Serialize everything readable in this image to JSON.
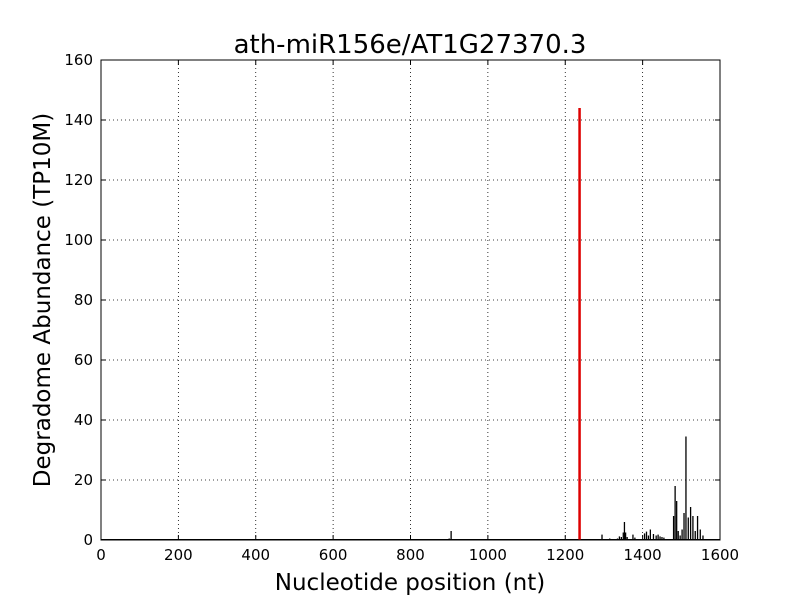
{
  "chart_data": {
    "type": "line",
    "title": "ath-miR156e/AT1G27370.3",
    "xlabel": "Nucleotide position (nt)",
    "ylabel": "Degradome Abundance (TP10M)",
    "xlim": [
      0,
      1600
    ],
    "ylim": [
      0,
      160
    ],
    "xticks": [
      0,
      200,
      400,
      600,
      800,
      1000,
      1200,
      1400,
      1600
    ],
    "yticks": [
      0,
      20,
      40,
      60,
      80,
      100,
      120,
      140,
      160
    ],
    "grid": true,
    "grid_style": "dotted",
    "colors": {
      "series": "#000000",
      "highlight": "#dd0000"
    },
    "series": [
      {
        "x": [
          150,
          240,
          500,
          610,
          700,
          780,
          900,
          905,
          1010,
          1100,
          1160,
          1295,
          1315,
          1335,
          1340,
          1345,
          1350,
          1353,
          1356,
          1360,
          1375,
          1380,
          1405,
          1410,
          1415,
          1420,
          1428,
          1435,
          1440,
          1445,
          1450,
          1455,
          1480,
          1484,
          1488,
          1492,
          1497,
          1502,
          1507,
          1512,
          1518,
          1524,
          1530,
          1536,
          1542,
          1549,
          1556
        ],
        "y": [
          0.2,
          0.2,
          0.3,
          0.3,
          0.2,
          0.2,
          0.5,
          3.0,
          0.3,
          0.2,
          0.3,
          1.8,
          0.5,
          0.5,
          1.2,
          1.0,
          2.5,
          6.0,
          2.5,
          1.0,
          1.8,
          0.8,
          2.2,
          2.8,
          1.5,
          3.5,
          2.0,
          1.5,
          1.8,
          1.2,
          1.0,
          0.8,
          8.0,
          18.0,
          13.0,
          3.0,
          1.5,
          3.5,
          9.0,
          34.5,
          7.5,
          11.0,
          8.0,
          3.0,
          8.0,
          3.5,
          1.5
        ]
      },
      {
        "x": [
          1237
        ],
        "y": [
          144
        ]
      }
    ]
  }
}
